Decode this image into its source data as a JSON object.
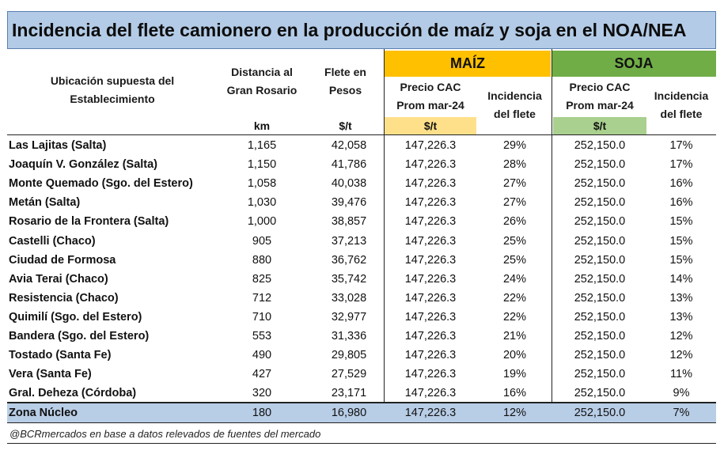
{
  "title": "Incidencia del flete camionero en la producción de maíz y soja en el NOA/NEA",
  "headers": {
    "ubicacion": [
      "Ubicación supuesta del",
      "Establecimiento"
    ],
    "distancia": [
      "Distancia al",
      "Gran Rosario"
    ],
    "flete": [
      "Flete en",
      "Pesos"
    ],
    "maiz_group": "MAÍZ",
    "soja_group": "SOJA",
    "precio": [
      "Precio CAC",
      "Prom mar-24"
    ],
    "incidencia": [
      "Incidencia",
      "del flete"
    ],
    "unit_km": "km",
    "unit_flete": "$/t",
    "unit_maiz_precio": "$/t",
    "unit_soja_precio": "$/t"
  },
  "colors": {
    "title_bg": "#b3cbe6",
    "maiz_header": "#ffc000",
    "maiz_unit": "#ffe08a",
    "soja_header": "#70ad47",
    "soja_unit": "#a9d08e",
    "total_row_bg": "#b8cde6"
  },
  "chart_data": {
    "type": "table",
    "title": "Incidencia del flete camionero en la producción de maíz y soja en el NOA/NEA",
    "columns": [
      "Ubicación supuesta del Establecimiento",
      "Distancia al Gran Rosario (km)",
      "Flete en Pesos ($/t)",
      "MAÍZ Precio CAC Prom mar-24 ($/t)",
      "MAÍZ Incidencia del flete",
      "SOJA Precio CAC Prom mar-24 ($/t)",
      "SOJA Incidencia del flete"
    ],
    "rows": [
      {
        "name": "Las Lajitas (Salta)",
        "km": "1,165",
        "flete": "42,058",
        "maiz_precio": "147,226.3",
        "maiz_inc": "29%",
        "soja_precio": "252,150.0",
        "soja_inc": "17%"
      },
      {
        "name": "Joaquín V. González (Salta)",
        "km": "1,150",
        "flete": "41,786",
        "maiz_precio": "147,226.3",
        "maiz_inc": "28%",
        "soja_precio": "252,150.0",
        "soja_inc": "17%"
      },
      {
        "name": "Monte Quemado (Sgo. del Estero)",
        "km": "1,058",
        "flete": "40,038",
        "maiz_precio": "147,226.3",
        "maiz_inc": "27%",
        "soja_precio": "252,150.0",
        "soja_inc": "16%"
      },
      {
        "name": "Metán (Salta)",
        "km": "1,030",
        "flete": "39,476",
        "maiz_precio": "147,226.3",
        "maiz_inc": "27%",
        "soja_precio": "252,150.0",
        "soja_inc": "16%"
      },
      {
        "name": "Rosario de la Frontera (Salta)",
        "km": "1,000",
        "flete": "38,857",
        "maiz_precio": "147,226.3",
        "maiz_inc": "26%",
        "soja_precio": "252,150.0",
        "soja_inc": "15%"
      },
      {
        "name": "Castelli (Chaco)",
        "km": "905",
        "flete": "37,213",
        "maiz_precio": "147,226.3",
        "maiz_inc": "25%",
        "soja_precio": "252,150.0",
        "soja_inc": "15%"
      },
      {
        "name": "Ciudad de Formosa",
        "km": "880",
        "flete": "36,762",
        "maiz_precio": "147,226.3",
        "maiz_inc": "25%",
        "soja_precio": "252,150.0",
        "soja_inc": "15%"
      },
      {
        "name": "Avia Terai (Chaco)",
        "km": "825",
        "flete": "35,742",
        "maiz_precio": "147,226.3",
        "maiz_inc": "24%",
        "soja_precio": "252,150.0",
        "soja_inc": "14%"
      },
      {
        "name": "Resistencia (Chaco)",
        "km": "712",
        "flete": "33,028",
        "maiz_precio": "147,226.3",
        "maiz_inc": "22%",
        "soja_precio": "252,150.0",
        "soja_inc": "13%"
      },
      {
        "name": "Quimilí (Sgo. del Estero)",
        "km": "710",
        "flete": "32,977",
        "maiz_precio": "147,226.3",
        "maiz_inc": "22%",
        "soja_precio": "252,150.0",
        "soja_inc": "13%"
      },
      {
        "name": "Bandera (Sgo. del Estero)",
        "km": "553",
        "flete": "31,336",
        "maiz_precio": "147,226.3",
        "maiz_inc": "21%",
        "soja_precio": "252,150.0",
        "soja_inc": "12%"
      },
      {
        "name": "Tostado (Santa Fe)",
        "km": "490",
        "flete": "29,805",
        "maiz_precio": "147,226.3",
        "maiz_inc": "20%",
        "soja_precio": "252,150.0",
        "soja_inc": "12%"
      },
      {
        "name": "Vera (Santa Fe)",
        "km": "427",
        "flete": "27,529",
        "maiz_precio": "147,226.3",
        "maiz_inc": "19%",
        "soja_precio": "252,150.0",
        "soja_inc": "11%"
      },
      {
        "name": "Gral. Deheza (Córdoba)",
        "km": "320",
        "flete": "23,171",
        "maiz_precio": "147,226.3",
        "maiz_inc": "16%",
        "soja_precio": "252,150.0",
        "soja_inc": "9%"
      }
    ],
    "total": {
      "name": "Zona Núcleo",
      "km": "180",
      "flete": "16,980",
      "maiz_precio": "147,226.3",
      "maiz_inc": "12%",
      "soja_precio": "252,150.0",
      "soja_inc": "7%"
    }
  },
  "footer": "@BCRmercados en base a datos relevados de fuentes del mercado"
}
